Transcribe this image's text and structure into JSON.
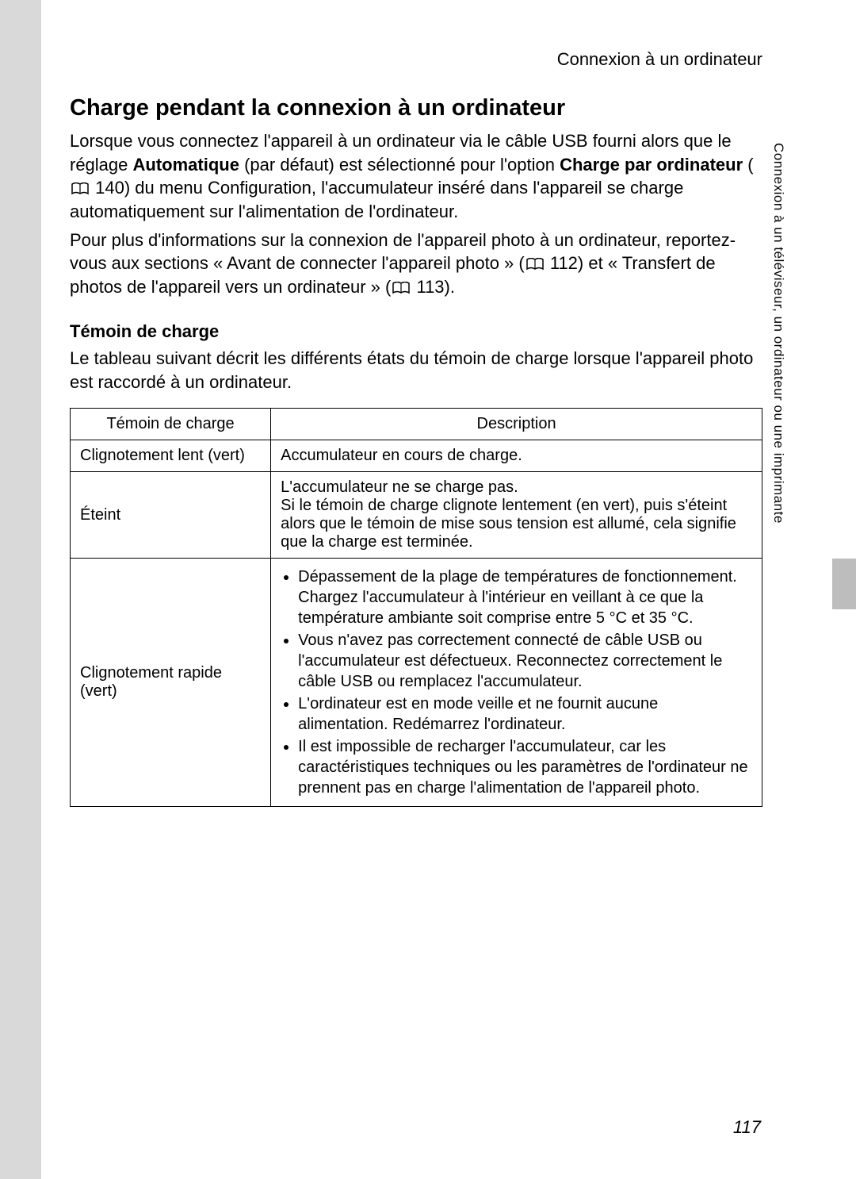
{
  "header": {
    "breadcrumb": "Connexion à un ordinateur"
  },
  "h1": "Charge pendant la connexion à un ordinateur",
  "p1_a": "Lorsque vous connectez l'appareil à un ordinateur via le câble USB fourni alors que le réglage ",
  "p1_b": "Automatique",
  "p1_c": " (par défaut) est sélectionné pour l'option ",
  "p1_d": "Charge par ordinateur",
  "p1_e": " (",
  "p1_ref1": "140",
  "p1_f": ") du menu Configuration, l'accumulateur inséré dans l'appareil se charge automatiquement sur l'alimentation de l'ordinateur.",
  "p2_a": "Pour plus d'informations sur la connexion de l'appareil photo à un ordinateur, reportez-vous aux sections « Avant de connecter l'appareil photo » (",
  "p2_ref1": "112",
  "p2_b": ") et « Transfert de photos de l'appareil vers un ordinateur » (",
  "p2_ref2": "113",
  "p2_c": ").",
  "h2": "Témoin de charge",
  "p3": "Le tableau suivant décrit les différents états du témoin de charge lorsque l'appareil photo est raccordé à un ordinateur.",
  "table": {
    "col1": "Témoin de charge",
    "col2": "Description",
    "rows": [
      {
        "c1": "Clignotement lent (vert)",
        "c2_text": "Accumulateur en cours de charge."
      },
      {
        "c1": "Éteint",
        "c2_text": "L'accumulateur ne se charge pas.\nSi le témoin de charge clignote lentement (en vert), puis s'éteint alors que le témoin de mise sous tension est allumé, cela signifie que la charge est terminée."
      },
      {
        "c1": "Clignotement rapide (vert)",
        "c2_list": [
          "Dépassement de la plage de températures de fonctionnement. Chargez l'accumulateur à l'intérieur en veillant à ce que la température ambiante soit comprise entre 5 °C et 35 °C.",
          "Vous n'avez pas correctement connecté de câble USB ou l'accumulateur est défectueux. Reconnectez correctement le câble USB ou remplacez l'accumulateur.",
          "L'ordinateur est en mode veille et ne fournit aucune alimentation. Redémarrez l'ordinateur.",
          "Il est impossible de recharger l'accumulateur, car les caractéristiques techniques ou les paramètres de l'ordinateur ne prennent pas en charge l'alimentation de l'appareil photo."
        ]
      }
    ]
  },
  "side_text": "Connexion à un téléviseur, un ordinateur ou une imprimante",
  "page_number": "117",
  "colors": {
    "page_bg": "#ffffff",
    "outer_bg": "#d9d9d9",
    "tab_bg": "#bdbdbd",
    "border": "#000000"
  }
}
